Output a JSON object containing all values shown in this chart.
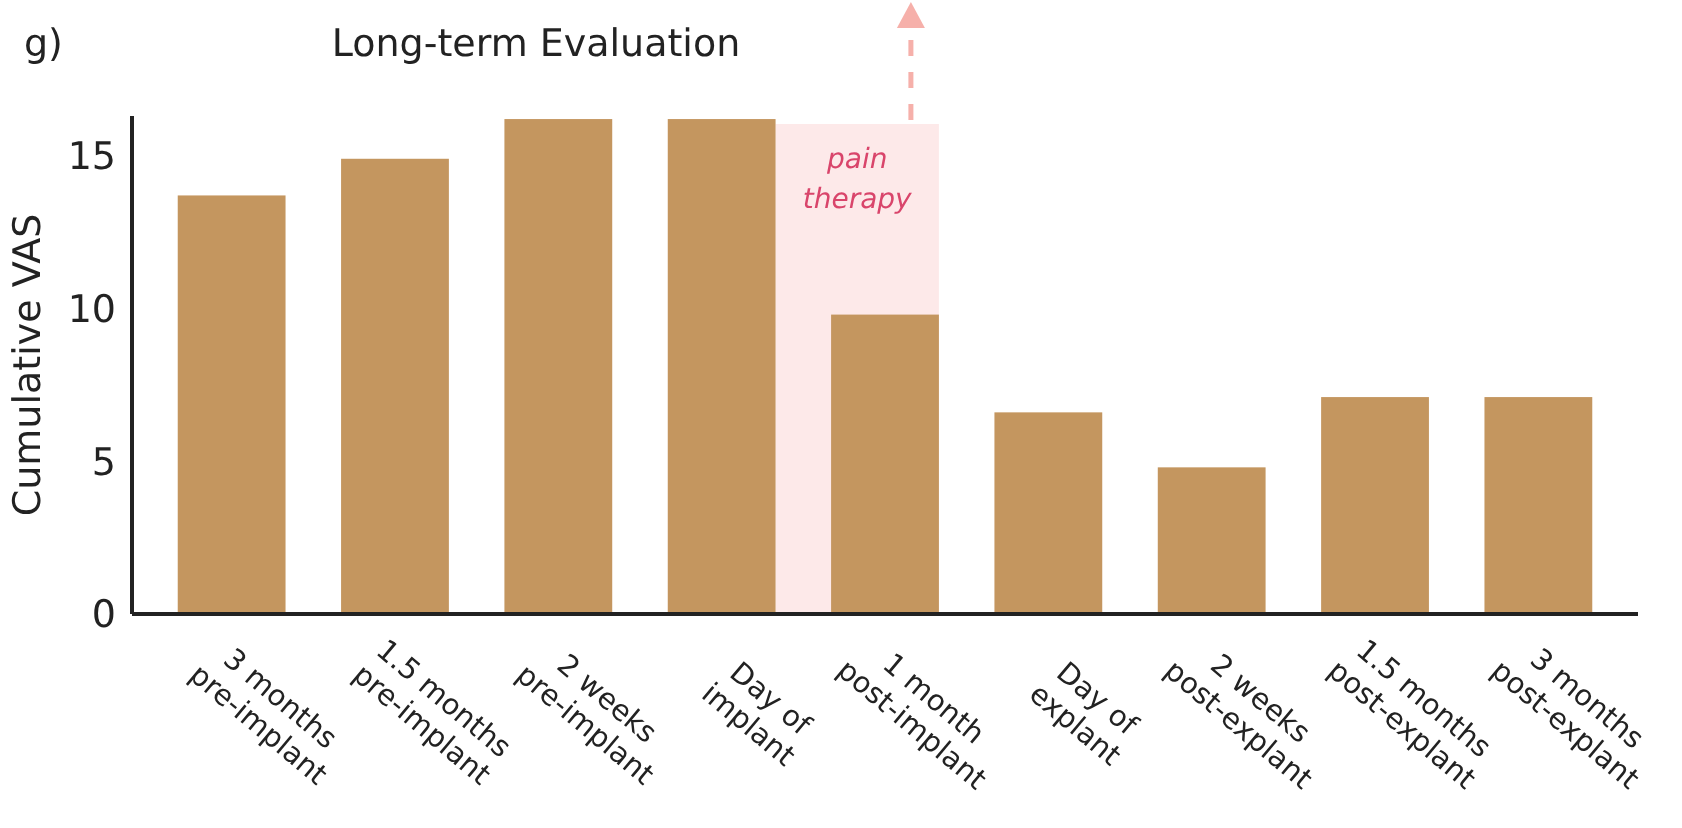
{
  "chart_data": {
    "type": "bar",
    "title": "Long-term Evaluation",
    "ylabel": "Cumulative VAS",
    "annotations": [
      "g)"
    ],
    "categories": [
      "3 months pre-implant",
      "1.5 months pre-implant",
      "2 weeks pre-implant",
      "Day of implant",
      "1 month post-implant",
      "Day of explant",
      "2 weeks post-explant",
      "1.5 months post-explant",
      "3 months post-explant"
    ],
    "values": [
      13.7,
      14.9,
      16.2,
      16.2,
      9.8,
      6.6,
      4.8,
      7.1,
      7.1
    ],
    "color": "#c4965f",
    "ylim": [
      0,
      16.3
    ],
    "yticks": [
      0,
      5,
      10,
      15
    ],
    "bands": [
      {
        "axis": "x",
        "from": "1 month post-implant",
        "to": "1 month post-implant",
        "label": "pain therapy",
        "color": "#fde9e9"
      }
    ],
    "grid": false
  }
}
